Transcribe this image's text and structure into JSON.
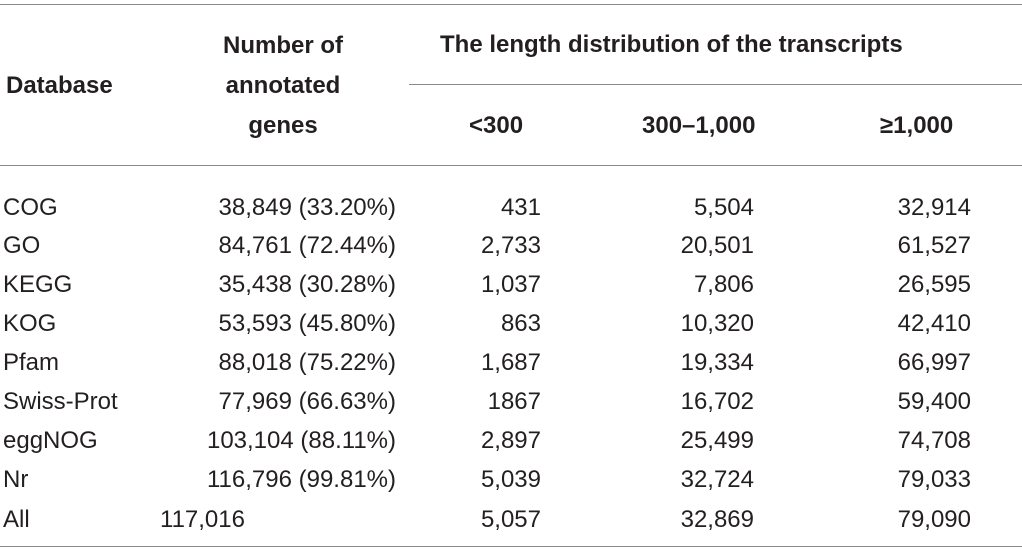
{
  "table": {
    "headers": {
      "database": "Database",
      "annotated_genes_line1": "Number of",
      "annotated_genes_line2": "annotated",
      "annotated_genes_line3": "genes",
      "length_distribution": "The length distribution of the transcripts",
      "lt300": "<300",
      "range_300_1000": "300–1,000",
      "gte1000": "≥1,000"
    },
    "rows": [
      {
        "database": "COG",
        "annotated": "38,849 (33.20%)",
        "lt300": "431",
        "mid": "5,504",
        "gte": "32,914"
      },
      {
        "database": "GO",
        "annotated": "84,761 (72.44%)",
        "lt300": "2,733",
        "mid": "20,501",
        "gte": "61,527"
      },
      {
        "database": "KEGG",
        "annotated": "35,438 (30.28%)",
        "lt300": "1,037",
        "mid": "7,806",
        "gte": "26,595"
      },
      {
        "database": "KOG",
        "annotated": "53,593 (45.80%)",
        "lt300": "863",
        "mid": "10,320",
        "gte": "42,410"
      },
      {
        "database": "Pfam",
        "annotated": "88,018 (75.22%)",
        "lt300": "1,687",
        "mid": "19,334",
        "gte": "66,997"
      },
      {
        "database": "Swiss-Prot",
        "annotated": "77,969 (66.63%)",
        "lt300": "1867",
        "mid": "16,702",
        "gte": "59,400"
      },
      {
        "database": "eggNOG",
        "annotated": "103,104 (88.11%)",
        "lt300": "2,897",
        "mid": "25,499",
        "gte": "74,708"
      },
      {
        "database": "Nr",
        "annotated": "116,796 (99.81%)",
        "lt300": "5,039",
        "mid": "32,724",
        "gte": "79,033"
      },
      {
        "database": "All",
        "annotated": "117,016",
        "lt300": "5,057",
        "mid": "32,869",
        "gte": "79,090"
      }
    ]
  }
}
